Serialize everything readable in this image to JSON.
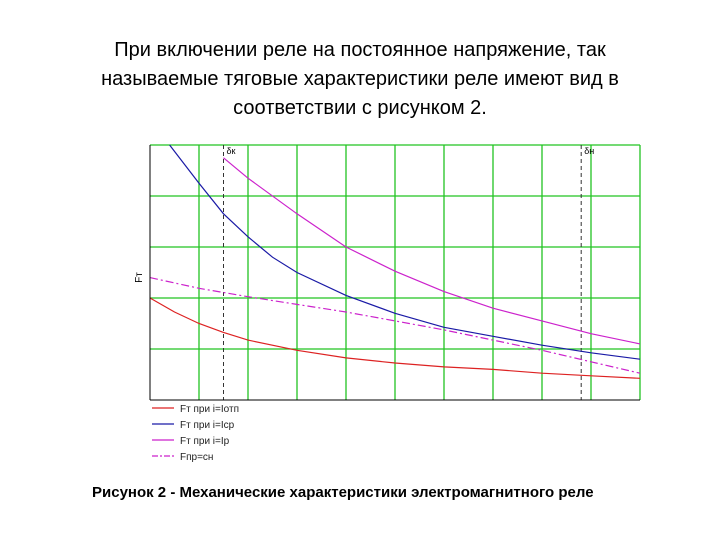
{
  "slide": {
    "title_lines": [
      "При включении реле на постоянное напряжение, так",
      "называемые тяговые характеристики реле имеют вид в",
      "соответствии с рисунком 2."
    ],
    "caption": "Рисунок 2 - Механические характеристики электромагнитного реле"
  },
  "chart_data": {
    "type": "line",
    "ylabel": "Fт",
    "xlabel": "",
    "xlim": [
      0,
      10
    ],
    "ylim": [
      0,
      10
    ],
    "grid": true,
    "grid_x": [
      1,
      2,
      3,
      4,
      5,
      6,
      7,
      8,
      9,
      10
    ],
    "grid_y": [
      2,
      4,
      6,
      8,
      10
    ],
    "legend_position": "bottom-left",
    "markers": [
      {
        "label": "δк",
        "x": 1.5
      },
      {
        "label": "δн",
        "x": 8.8
      }
    ],
    "series": [
      {
        "name": "Fт при i=Iотп",
        "color": "#dd2222",
        "style": "solid",
        "x": [
          0,
          0.5,
          1,
          1.5,
          2,
          3,
          4,
          5,
          6,
          7,
          8,
          9,
          10
        ],
        "y": [
          4.0,
          3.45,
          3.0,
          2.65,
          2.35,
          1.95,
          1.65,
          1.45,
          1.3,
          1.2,
          1.05,
          0.95,
          0.85
        ]
      },
      {
        "name": "Fт при i=Iср",
        "color": "#1a1aa6",
        "style": "solid",
        "x": [
          0.4,
          1,
          1.5,
          2,
          2.5,
          3,
          4,
          5,
          6,
          7,
          8,
          9,
          10
        ],
        "y": [
          10.0,
          8.5,
          7.3,
          6.4,
          5.6,
          5.0,
          4.1,
          3.4,
          2.85,
          2.5,
          2.15,
          1.85,
          1.6
        ]
      },
      {
        "name": "Fт при i=Iр",
        "color": "#cc22cc",
        "style": "solid",
        "x": [
          1.5,
          2,
          3,
          4,
          5,
          6,
          7,
          8,
          9,
          10
        ],
        "y": [
          9.5,
          8.7,
          7.3,
          6.0,
          5.05,
          4.25,
          3.6,
          3.1,
          2.6,
          2.2
        ]
      },
      {
        "name": "Fпр=сн",
        "color": "#cc22cc",
        "style": "dashdot",
        "x": [
          0,
          1,
          2,
          3,
          4,
          5,
          6,
          7,
          8,
          9,
          10
        ],
        "y": [
          4.8,
          4.38,
          4.05,
          3.75,
          3.45,
          3.1,
          2.75,
          2.35,
          1.95,
          1.5,
          1.05
        ]
      }
    ]
  }
}
